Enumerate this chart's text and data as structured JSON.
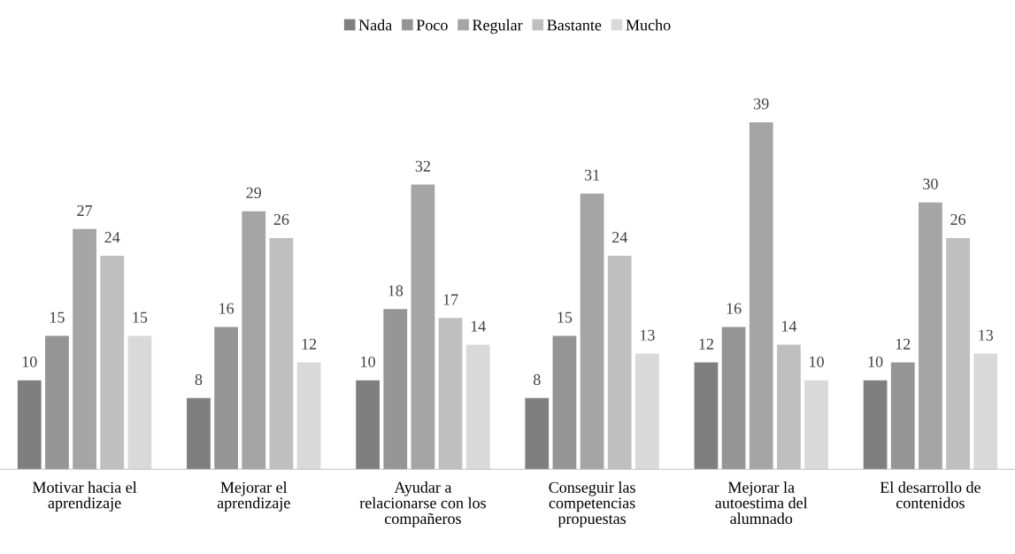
{
  "chart_data": {
    "type": "bar",
    "categories": [
      "Motivar hacia el\naprendizaje",
      "Mejorar el\naprendizaje",
      "Ayudar a\nrelacionarse con los\ncompañeros",
      "Conseguir las\ncompetencias\npropuestas",
      "Mejorar la\nautoestima del\nalumnado",
      "El desarrollo de\ncontenidos"
    ],
    "series": [
      {
        "name": "Nada",
        "color": "#7f7f7f",
        "values": [
          10,
          8,
          10,
          8,
          12,
          10
        ]
      },
      {
        "name": "Poco",
        "color": "#959595",
        "values": [
          15,
          16,
          18,
          15,
          16,
          12
        ]
      },
      {
        "name": "Regular",
        "color": "#a5a5a5",
        "values": [
          27,
          29,
          32,
          31,
          39,
          30
        ]
      },
      {
        "name": "Bastante",
        "color": "#bfbfbf",
        "values": [
          24,
          26,
          17,
          24,
          14,
          26
        ]
      },
      {
        "name": "Mucho",
        "color": "#d9d9d9",
        "values": [
          15,
          12,
          14,
          13,
          10,
          13
        ]
      }
    ],
    "data_labels": true,
    "legend": "top",
    "grid": false
  }
}
